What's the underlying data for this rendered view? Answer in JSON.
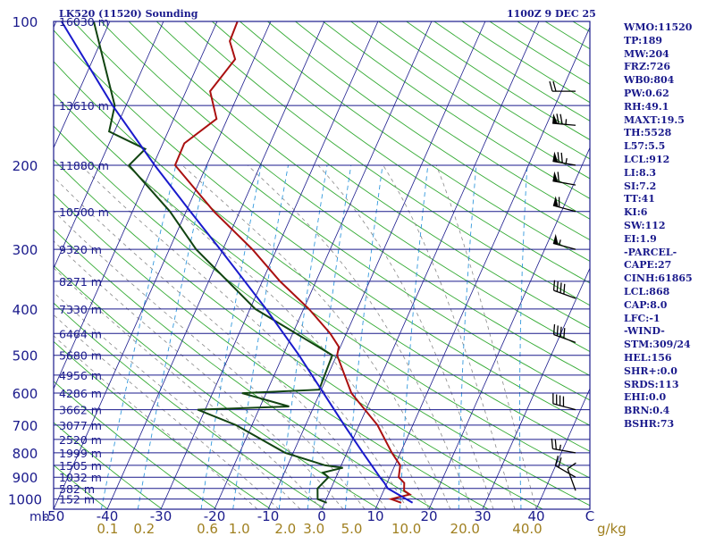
{
  "header": {
    "station": "LK520 (11520) Sounding",
    "datetime": "1100Z  9 DEC 25"
  },
  "indices": [
    "WMO:11520",
    "TP:189",
    "MW:204",
    "FRZ:726",
    "WB0:804",
    "PW:0.62",
    "RH:49.1",
    "MAXT:19.5",
    "TH:5528",
    "L57:5.5",
    "LCL:912",
    "LI:8.3",
    "SI:7.2",
    "TT:41",
    "KI:6",
    "SW:112",
    "EI:1.9",
    "-PARCEL-",
    "CAPE:27",
    "CINH:61865",
    "LCL:868",
    "CAP:8.0",
    "LFC:-1",
    "-WIND-",
    "STM:309/24",
    "HEL:156",
    "SHR+:0.0",
    "SRDS:113",
    "EHI:0.0",
    "BRN:0.4",
    "BSHR:73"
  ],
  "chart_data": {
    "type": "skew-t",
    "title": "LK520 (11520) Sounding",
    "xlabel": "mb",
    "x_unit": "°C",
    "mixing_ratio_unit": "g/kg",
    "temperature_ticks": [
      "-50",
      "-40",
      "-30",
      "-20",
      "-10",
      "0",
      "10",
      "20",
      "30",
      "40",
      "C"
    ],
    "temperature_tick_values": [
      -50,
      -40,
      -30,
      -20,
      -10,
      0,
      10,
      20,
      30,
      40
    ],
    "pressure_ticks": [
      100,
      200,
      300,
      400,
      500,
      600,
      700,
      800,
      900,
      1000
    ],
    "pressure_range": [
      100,
      1050
    ],
    "height_labels": [
      {
        "p": 100,
        "label": "16030 m"
      },
      {
        "p": 150,
        "label": "13610 m"
      },
      {
        "p": 200,
        "label": "11880 m"
      },
      {
        "p": 250,
        "label": "10500 m"
      },
      {
        "p": 300,
        "label": "9320 m"
      },
      {
        "p": 350,
        "label": "8271 m"
      },
      {
        "p": 400,
        "label": "7330 m"
      },
      {
        "p": 450,
        "label": "6464 m"
      },
      {
        "p": 500,
        "label": "5680 m"
      },
      {
        "p": 550,
        "label": "4956 m"
      },
      {
        "p": 600,
        "label": "4286 m"
      },
      {
        "p": 650,
        "label": "3662 m"
      },
      {
        "p": 700,
        "label": "3077 m"
      },
      {
        "p": 750,
        "label": "2520 m"
      },
      {
        "p": 800,
        "label": "1999 m"
      },
      {
        "p": 850,
        "label": "1505 m"
      },
      {
        "p": 900,
        "label": "1032 m"
      },
      {
        "p": 950,
        "label": "582 m"
      },
      {
        "p": 1000,
        "label": "152 m"
      }
    ],
    "mixing_ratio_labels": [
      "0.1",
      "0.2",
      "0.6",
      "1.0",
      "2.0",
      "3.0",
      "5.0",
      "10.0",
      "20.0",
      "40.0"
    ],
    "mixing_ratio_values": [
      0.1,
      0.2,
      0.6,
      1.0,
      2.0,
      3.0,
      5.0,
      10.0,
      20.0,
      40.0
    ],
    "series": [
      {
        "name": "Temperature",
        "color": "#aa1010",
        "points": [
          [
            1018,
            14.3
          ],
          [
            1000,
            12.1
          ],
          [
            978,
            15.2
          ],
          [
            960,
            13.8
          ],
          [
            925,
            13.2
          ],
          [
            900,
            11.7
          ],
          [
            850,
            11.0
          ],
          [
            800,
            8.4
          ],
          [
            700,
            3.4
          ],
          [
            600,
            -4.1
          ],
          [
            500,
            -9.9
          ],
          [
            480,
            -10.3
          ],
          [
            450,
            -13.0
          ],
          [
            400,
            -19.0
          ],
          [
            350,
            -26.7
          ],
          [
            300,
            -34.5
          ],
          [
            250,
            -44.8
          ],
          [
            200,
            -55.9
          ],
          [
            180,
            -56.0
          ],
          [
            160,
            -52.0
          ],
          [
            140,
            -55.5
          ],
          [
            120,
            -53.5
          ],
          [
            110,
            -56.0
          ],
          [
            100,
            -56.2
          ]
        ]
      },
      {
        "name": "Dewpoint",
        "color": "#114411",
        "points": [
          [
            1018,
            0.4
          ],
          [
            1000,
            -1.6
          ],
          [
            950,
            -2.5
          ],
          [
            900,
            -1.4
          ],
          [
            880,
            -2.8
          ],
          [
            860,
            0.5
          ],
          [
            850,
            -3.0
          ],
          [
            800,
            -11.5
          ],
          [
            700,
            -23.0
          ],
          [
            650,
            -31.4
          ],
          [
            640,
            -14.6
          ],
          [
            600,
            -24.5
          ],
          [
            590,
            -10.4
          ],
          [
            500,
            -10.8
          ],
          [
            400,
            -29.0
          ],
          [
            300,
            -45.0
          ],
          [
            250,
            -53.0
          ],
          [
            200,
            -64.5
          ],
          [
            185,
            -62.8
          ],
          [
            170,
            -71.0
          ],
          [
            150,
            -72.1
          ],
          [
            100,
            -83.0
          ]
        ]
      },
      {
        "name": "Parcel",
        "color": "#1a1acc",
        "points": [
          [
            1018,
            16.4
          ],
          [
            950,
            10.6
          ],
          [
            925,
            9.5
          ],
          [
            900,
            8.2
          ],
          [
            800,
            3.0
          ],
          [
            700,
            -2.8
          ],
          [
            600,
            -9.3
          ],
          [
            500,
            -17.0
          ],
          [
            400,
            -27.0
          ],
          [
            300,
            -40.5
          ],
          [
            250,
            -49.2
          ],
          [
            200,
            -59.7
          ],
          [
            150,
            -72.5
          ],
          [
            100,
            -89.0
          ]
        ]
      }
    ],
    "wind_barbs": [
      {
        "p": 140,
        "dir_deg": 270,
        "speed_kt": 20
      },
      {
        "p": 165,
        "dir_deg": 275,
        "speed_kt": 75
      },
      {
        "p": 200,
        "dir_deg": 280,
        "speed_kt": 75
      },
      {
        "p": 220,
        "dir_deg": 280,
        "speed_kt": 60
      },
      {
        "p": 250,
        "dir_deg": 285,
        "speed_kt": 60
      },
      {
        "p": 300,
        "dir_deg": 285,
        "speed_kt": 55
      },
      {
        "p": 380,
        "dir_deg": 290,
        "speed_kt": 40
      },
      {
        "p": 470,
        "dir_deg": 290,
        "speed_kt": 40
      },
      {
        "p": 650,
        "dir_deg": 285,
        "speed_kt": 40
      },
      {
        "p": 800,
        "dir_deg": 280,
        "speed_kt": 25
      },
      {
        "p": 900,
        "dir_deg": 300,
        "speed_kt": 20
      },
      {
        "p": 960,
        "dir_deg": 340,
        "speed_kt": 10
      }
    ],
    "grid": true,
    "colors": {
      "isobar": "#1a1a8c",
      "isotherm": "#1a1a8c",
      "dry_adiabat": "#33aa33",
      "moist_adiabat": "#888888",
      "mixing_ratio": "#3399dd",
      "text": "#1a1a8c",
      "mixing_ratio_text": "#a08020",
      "background": "#ffffff"
    }
  }
}
